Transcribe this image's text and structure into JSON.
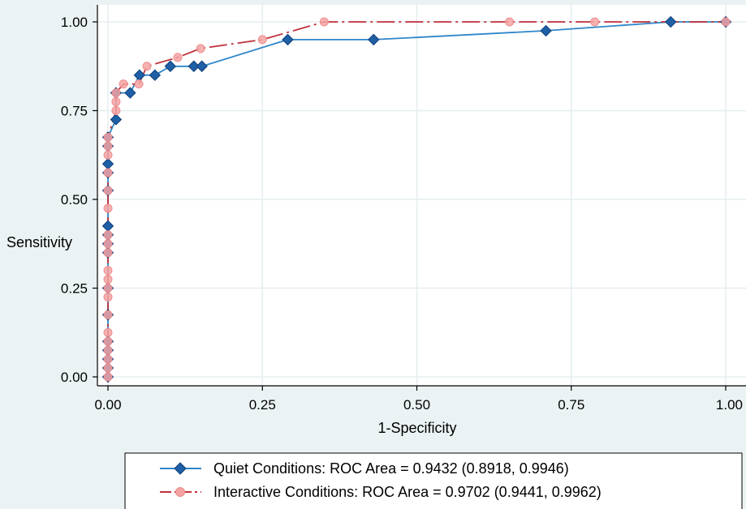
{
  "chart_data": {
    "type": "line",
    "title": "",
    "xlabel": "1-Specificity",
    "ylabel": "Sensitivity",
    "xlim": [
      0,
      1
    ],
    "ylim": [
      0,
      1
    ],
    "x_ticks": [
      "0.00",
      "0.25",
      "0.50",
      "0.75",
      "1.00"
    ],
    "y_ticks": [
      "0.00",
      "0.25",
      "0.50",
      "0.75",
      "1.00"
    ],
    "grid": true,
    "legend_position": "bottom",
    "series": [
      {
        "name": "Quiet Conditions: ROC Area = 0.9432 (0.8918, 0.9946)",
        "color": "#2f86c9",
        "marker": "diamond",
        "marker_fill": "#1f5fa6",
        "line_style": "solid",
        "points": [
          [
            0,
            0
          ],
          [
            0,
            0.025
          ],
          [
            0,
            0.05
          ],
          [
            0,
            0.075
          ],
          [
            0,
            0.1
          ],
          [
            0,
            0.175
          ],
          [
            0,
            0.25
          ],
          [
            0,
            0.35
          ],
          [
            0,
            0.375
          ],
          [
            0,
            0.4
          ],
          [
            0,
            0.425
          ],
          [
            0,
            0.525
          ],
          [
            0,
            0.575
          ],
          [
            0,
            0.6
          ],
          [
            0,
            0.65
          ],
          [
            0,
            0.675
          ],
          [
            0.013,
            0.725
          ],
          [
            0.013,
            0.8
          ],
          [
            0.036,
            0.8
          ],
          [
            0.051,
            0.85
          ],
          [
            0.076,
            0.85
          ],
          [
            0.101,
            0.875
          ],
          [
            0.139,
            0.875
          ],
          [
            0.152,
            0.875
          ],
          [
            0.291,
            0.95
          ],
          [
            0.43,
            0.95
          ],
          [
            0.709,
            0.975
          ],
          [
            0.911,
            1.0
          ],
          [
            1.0,
            1.0
          ]
        ]
      },
      {
        "name": "Interactive Conditions: ROC Area = 0.9702 (0.9441, 0.9962)",
        "color": "#c0303a",
        "marker": "circle",
        "marker_fill": "#f4a3a3",
        "line_style": "dash-dot",
        "points": [
          [
            0,
            0
          ],
          [
            0,
            0.025
          ],
          [
            0,
            0.05
          ],
          [
            0,
            0.075
          ],
          [
            0,
            0.1
          ],
          [
            0,
            0.125
          ],
          [
            0,
            0.175
          ],
          [
            0,
            0.225
          ],
          [
            0,
            0.25
          ],
          [
            0,
            0.275
          ],
          [
            0,
            0.3
          ],
          [
            0,
            0.35
          ],
          [
            0,
            0.375
          ],
          [
            0,
            0.4
          ],
          [
            0,
            0.475
          ],
          [
            0,
            0.525
          ],
          [
            0,
            0.575
          ],
          [
            0,
            0.625
          ],
          [
            0,
            0.65
          ],
          [
            0,
            0.675
          ],
          [
            0.013,
            0.75
          ],
          [
            0.013,
            0.775
          ],
          [
            0.013,
            0.8
          ],
          [
            0.025,
            0.825
          ],
          [
            0.05,
            0.825
          ],
          [
            0.063,
            0.875
          ],
          [
            0.113,
            0.9
          ],
          [
            0.15,
            0.925
          ],
          [
            0.25,
            0.95
          ],
          [
            0.35,
            1.0
          ],
          [
            0.65,
            1.0
          ],
          [
            0.788,
            1.0
          ],
          [
            1.0,
            1.0
          ]
        ]
      }
    ]
  },
  "colors": {
    "background": "#eaf2f3",
    "plot_background": "#ffffff",
    "grid": "#e6eef0",
    "axis": "#000000"
  }
}
